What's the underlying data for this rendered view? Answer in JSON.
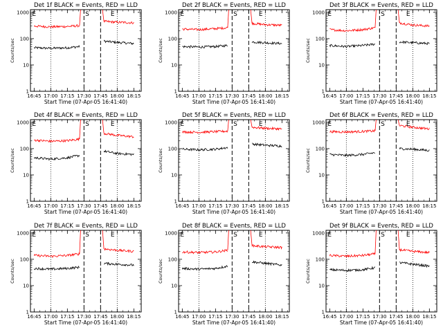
{
  "chart_data": [
    {
      "type": "line",
      "title": "Det 1f BLACK = Events, RED = LLD",
      "xlabel": "Start Time (07-Apr-05 16:41:40)",
      "ylabel": "Counts/sec",
      "yscale": "log",
      "ylim": [
        1,
        1000
      ],
      "y_ticks": [
        "1",
        "10",
        "100",
        "1000"
      ],
      "x_ticks": [
        "16:45",
        "17:00",
        "17:15",
        "17:30",
        "17:45",
        "18:00",
        "18:15"
      ],
      "series": [
        {
          "name": "BLACK = Events",
          "color": "#000000",
          "segments": [
            {
              "x": [
                "16:45",
                "17:00",
                "17:15",
                "17:26"
              ],
              "y": [
                45,
                43,
                45,
                50
              ]
            },
            {
              "x": [
                "17:48",
                "18:00",
                "18:15"
              ],
              "y": [
                80,
                72,
                65
              ]
            }
          ]
        },
        {
          "name": "RED = LLD",
          "color": "#ff0000",
          "segments": [
            {
              "x": [
                "16:45",
                "17:00",
                "17:15",
                "17:26"
              ],
              "y": [
                300,
                280,
                290,
                310
              ]
            },
            {
              "x": [
                "17:48",
                "18:00",
                "18:15"
              ],
              "y": [
                450,
                420,
                400
              ]
            }
          ]
        }
      ],
      "markers": [
        {
          "label": "E",
          "x": "16:45"
        },
        {
          "label": "S",
          "x": "17:33"
        },
        {
          "label": "E",
          "x": "17:56"
        }
      ],
      "dashed_lines": [
        "17:30",
        "17:45"
      ],
      "dotted_lines": [
        "17:00",
        "18:00"
      ]
    },
    {
      "type": "line",
      "title": "Det 2f BLACK = Events, RED = LLD",
      "xlabel": "Start Time (07-Apr-05 16:41:40)",
      "ylabel": "Counts/sec",
      "yscale": "log",
      "ylim": [
        1,
        1000
      ],
      "y_ticks": [
        "1",
        "10",
        "100",
        "1000"
      ],
      "x_ticks": [
        "16:45",
        "17:00",
        "17:15",
        "17:30",
        "17:45",
        "18:00",
        "18:15"
      ],
      "series": [
        {
          "name": "BLACK = Events",
          "color": "#000000",
          "segments": [
            {
              "x": [
                "16:45",
                "17:00",
                "17:15",
                "17:26"
              ],
              "y": [
                50,
                48,
                50,
                55
              ]
            },
            {
              "x": [
                "17:48",
                "18:00",
                "18:15"
              ],
              "y": [
                75,
                70,
                65
              ]
            }
          ]
        },
        {
          "name": "RED = LLD",
          "color": "#ff0000",
          "segments": [
            {
              "x": [
                "16:45",
                "17:00",
                "17:15",
                "17:26"
              ],
              "y": [
                230,
                220,
                240,
                260
              ]
            },
            {
              "x": [
                "17:48",
                "18:00",
                "18:15"
              ],
              "y": [
                380,
                340,
                320
              ]
            }
          ]
        }
      ],
      "markers": [
        {
          "label": "E",
          "x": "16:45"
        },
        {
          "label": "S",
          "x": "17:33"
        },
        {
          "label": "E",
          "x": "17:56"
        }
      ],
      "dashed_lines": [
        "17:30",
        "17:45"
      ],
      "dotted_lines": [
        "17:00",
        "18:00"
      ]
    },
    {
      "type": "line",
      "title": "Det 3f BLACK = Events, RED = LLD",
      "xlabel": "Start Time (07-Apr-05 16:41:40)",
      "ylabel": "Counts/sec",
      "yscale": "log",
      "ylim": [
        1,
        1000
      ],
      "y_ticks": [
        "1",
        "10",
        "100",
        "1000"
      ],
      "x_ticks": [
        "16:45",
        "17:00",
        "17:15",
        "17:30",
        "17:45",
        "18:00",
        "18:15"
      ],
      "series": [
        {
          "name": "BLACK = Events",
          "color": "#000000",
          "segments": [
            {
              "x": [
                "16:45",
                "17:00",
                "17:15",
                "17:26"
              ],
              "y": [
                55,
                50,
                55,
                62
              ]
            },
            {
              "x": [
                "17:48",
                "18:00",
                "18:15"
              ],
              "y": [
                75,
                70,
                65
              ]
            }
          ]
        },
        {
          "name": "RED = LLD",
          "color": "#ff0000",
          "segments": [
            {
              "x": [
                "16:45",
                "17:00",
                "17:15",
                "17:26"
              ],
              "y": [
                220,
                200,
                220,
                260
              ]
            },
            {
              "x": [
                "17:48",
                "18:00",
                "18:15"
              ],
              "y": [
                400,
                330,
                300
              ]
            }
          ]
        }
      ],
      "markers": [
        {
          "label": "E",
          "x": "16:45"
        },
        {
          "label": "S",
          "x": "17:33"
        },
        {
          "label": "E",
          "x": "17:56"
        }
      ],
      "dashed_lines": [
        "17:30",
        "17:45"
      ],
      "dotted_lines": [
        "17:00",
        "18:00"
      ]
    },
    {
      "type": "line",
      "title": "Det 4f BLACK = Events, RED = LLD",
      "xlabel": "Start Time (07-Apr-05 16:41:40)",
      "ylabel": "Counts/sec",
      "yscale": "log",
      "ylim": [
        1,
        1000
      ],
      "y_ticks": [
        "1",
        "10",
        "100",
        "1000"
      ],
      "x_ticks": [
        "16:45",
        "17:00",
        "17:15",
        "17:30",
        "17:45",
        "18:00",
        "18:15"
      ],
      "series": [
        {
          "name": "BLACK = Events",
          "color": "#000000",
          "segments": [
            {
              "x": [
                "16:45",
                "17:00",
                "17:15",
                "17:26"
              ],
              "y": [
                45,
                40,
                45,
                55
              ]
            },
            {
              "x": [
                "17:48",
                "18:00",
                "18:15"
              ],
              "y": [
                80,
                65,
                60
              ]
            }
          ]
        },
        {
          "name": "RED = LLD",
          "color": "#ff0000",
          "segments": [
            {
              "x": [
                "16:45",
                "17:00",
                "17:15",
                "17:26"
              ],
              "y": [
                210,
                190,
                200,
                230
              ]
            },
            {
              "x": [
                "17:48",
                "18:00",
                "18:15"
              ],
              "y": [
                380,
                320,
                280
              ]
            }
          ]
        }
      ],
      "markers": [
        {
          "label": "E",
          "x": "16:45"
        },
        {
          "label": "S",
          "x": "17:33"
        },
        {
          "label": "E",
          "x": "17:56"
        }
      ],
      "dashed_lines": [
        "17:30",
        "17:45"
      ],
      "dotted_lines": [
        "17:00",
        "18:00"
      ]
    },
    {
      "type": "line",
      "title": "Det 5f BLACK = Events, RED = LLD",
      "xlabel": "Start Time (07-Apr-05 16:41:40)",
      "ylabel": "Counts/sec",
      "yscale": "log",
      "ylim": [
        1,
        1000
      ],
      "y_ticks": [
        "1",
        "10",
        "100",
        "1000"
      ],
      "x_ticks": [
        "16:45",
        "17:00",
        "17:15",
        "17:30",
        "17:45",
        "18:00",
        "18:15"
      ],
      "series": [
        {
          "name": "BLACK = Events",
          "color": "#000000",
          "segments": [
            {
              "x": [
                "16:45",
                "17:00",
                "17:15",
                "17:26"
              ],
              "y": [
                95,
                90,
                95,
                110
              ]
            },
            {
              "x": [
                "17:48",
                "18:00",
                "18:15"
              ],
              "y": [
                150,
                135,
                125
              ]
            }
          ]
        },
        {
          "name": "RED = LLD",
          "color": "#ff0000",
          "segments": [
            {
              "x": [
                "16:45",
                "17:00",
                "17:15",
                "17:26"
              ],
              "y": [
                430,
                420,
                440,
                460
              ]
            },
            {
              "x": [
                "17:48",
                "18:00",
                "18:15"
              ],
              "y": [
                650,
                590,
                560
              ]
            }
          ]
        }
      ],
      "markers": [
        {
          "label": "E",
          "x": "16:45"
        },
        {
          "label": "S",
          "x": "17:33"
        },
        {
          "label": "E",
          "x": "17:56"
        }
      ],
      "dashed_lines": [
        "17:30",
        "17:45"
      ],
      "dotted_lines": [
        "17:00",
        "18:00"
      ]
    },
    {
      "type": "line",
      "title": "Det 6f BLACK = Events, RED = LLD",
      "xlabel": "Start Time (07-Apr-05 16:41:40)",
      "ylabel": "Counts/sec",
      "yscale": "log",
      "ylim": [
        1,
        1000
      ],
      "y_ticks": [
        "1",
        "10",
        "100",
        "1000"
      ],
      "x_ticks": [
        "16:45",
        "17:00",
        "17:15",
        "17:30",
        "17:45",
        "18:00",
        "18:15"
      ],
      "series": [
        {
          "name": "BLACK = Events",
          "color": "#000000",
          "segments": [
            {
              "x": [
                "16:45",
                "17:00",
                "17:15",
                "17:26"
              ],
              "y": [
                60,
                55,
                60,
                70
              ]
            },
            {
              "x": [
                "17:48",
                "18:00",
                "18:15"
              ],
              "y": [
                100,
                95,
                85
              ]
            }
          ]
        },
        {
          "name": "RED = LLD",
          "color": "#ff0000",
          "segments": [
            {
              "x": [
                "16:45",
                "17:00",
                "17:15",
                "17:26"
              ],
              "y": [
                440,
                430,
                450,
                470
              ]
            },
            {
              "x": [
                "17:48",
                "18:00",
                "18:15"
              ],
              "y": [
                750,
                650,
                560
              ]
            }
          ]
        }
      ],
      "markers": [
        {
          "label": "E",
          "x": "16:45"
        },
        {
          "label": "S",
          "x": "17:33"
        },
        {
          "label": "E",
          "x": "17:56"
        }
      ],
      "dashed_lines": [
        "17:30",
        "17:45"
      ],
      "dotted_lines": [
        "17:00",
        "18:00"
      ]
    },
    {
      "type": "line",
      "title": "Det 7f BLACK = Events, RED = LLD",
      "xlabel": "Start Time (07-Apr-05 16:41:40)",
      "ylabel": "Counts/sec",
      "yscale": "log",
      "ylim": [
        1,
        1000
      ],
      "y_ticks": [
        "1",
        "10",
        "100",
        "1000"
      ],
      "x_ticks": [
        "16:45",
        "17:00",
        "17:15",
        "17:30",
        "17:45",
        "18:00",
        "18:15"
      ],
      "series": [
        {
          "name": "BLACK = Events",
          "color": "#000000",
          "segments": [
            {
              "x": [
                "16:45",
                "17:00",
                "17:15",
                "17:26"
              ],
              "y": [
                45,
                42,
                45,
                50
              ]
            },
            {
              "x": [
                "17:48",
                "18:00",
                "18:15"
              ],
              "y": [
                70,
                65,
                60
              ]
            }
          ]
        },
        {
          "name": "RED = LLD",
          "color": "#ff0000",
          "segments": [
            {
              "x": [
                "16:45",
                "17:00",
                "17:15",
                "17:26"
              ],
              "y": [
                140,
                130,
                140,
                160
              ]
            },
            {
              "x": [
                "17:48",
                "18:00",
                "18:15"
              ],
              "y": [
                250,
                220,
                200
              ]
            }
          ]
        }
      ],
      "markers": [
        {
          "label": "E",
          "x": "16:45"
        },
        {
          "label": "S",
          "x": "17:33"
        },
        {
          "label": "E",
          "x": "17:56"
        }
      ],
      "dashed_lines": [
        "17:30",
        "17:45"
      ],
      "dotted_lines": [
        "17:00",
        "18:00"
      ]
    },
    {
      "type": "line",
      "title": "Det 8f BLACK = Events, RED = LLD",
      "xlabel": "Start Time (07-Apr-05 16:41:40)",
      "ylabel": "Counts/sec",
      "yscale": "log",
      "ylim": [
        1,
        1000
      ],
      "y_ticks": [
        "1",
        "10",
        "100",
        "1000"
      ],
      "x_ticks": [
        "16:45",
        "17:00",
        "17:15",
        "17:30",
        "17:45",
        "18:00",
        "18:15"
      ],
      "series": [
        {
          "name": "BLACK = Events",
          "color": "#000000",
          "segments": [
            {
              "x": [
                "16:45",
                "17:00",
                "17:15",
                "17:26"
              ],
              "y": [
                45,
                42,
                45,
                55
              ]
            },
            {
              "x": [
                "17:48",
                "18:00",
                "18:15"
              ],
              "y": [
                80,
                70,
                60
              ]
            }
          ]
        },
        {
          "name": "RED = LLD",
          "color": "#ff0000",
          "segments": [
            {
              "x": [
                "16:45",
                "17:00",
                "17:15",
                "17:26"
              ],
              "y": [
                190,
                180,
                190,
                220
              ]
            },
            {
              "x": [
                "17:48",
                "18:00",
                "18:15"
              ],
              "y": [
                330,
                300,
                280
              ]
            }
          ]
        }
      ],
      "markers": [
        {
          "label": "E",
          "x": "16:45"
        },
        {
          "label": "S",
          "x": "17:33"
        },
        {
          "label": "E",
          "x": "17:56"
        }
      ],
      "dashed_lines": [
        "17:30",
        "17:45"
      ],
      "dotted_lines": [
        "17:00",
        "18:00"
      ]
    },
    {
      "type": "line",
      "title": "Det 9f BLACK = Events, RED = LLD",
      "xlabel": "Start Time (07-Apr-05 16:41:40)",
      "ylabel": "Counts/sec",
      "yscale": "log",
      "ylim": [
        1,
        1000
      ],
      "y_ticks": [
        "1",
        "10",
        "100",
        "1000"
      ],
      "x_ticks": [
        "16:45",
        "17:00",
        "17:15",
        "17:30",
        "17:45",
        "18:00",
        "18:15"
      ],
      "series": [
        {
          "name": "BLACK = Events",
          "color": "#000000",
          "segments": [
            {
              "x": [
                "16:45",
                "17:00",
                "17:15",
                "17:26"
              ],
              "y": [
                40,
                38,
                40,
                48
              ]
            },
            {
              "x": [
                "17:48",
                "18:00",
                "18:15"
              ],
              "y": [
                75,
                65,
                55
              ]
            }
          ]
        },
        {
          "name": "RED = LLD",
          "color": "#ff0000",
          "segments": [
            {
              "x": [
                "16:45",
                "17:00",
                "17:15",
                "17:26"
              ],
              "y": [
                140,
                130,
                140,
                160
              ]
            },
            {
              "x": [
                "17:48",
                "18:00",
                "18:15"
              ],
              "y": [
                230,
                200,
                180
              ]
            }
          ]
        }
      ],
      "markers": [
        {
          "label": "E",
          "x": "16:45"
        },
        {
          "label": "S",
          "x": "17:33"
        },
        {
          "label": "E",
          "x": "17:56"
        }
      ],
      "dashed_lines": [
        "17:30",
        "17:45"
      ],
      "dotted_lines": [
        "17:00",
        "18:00"
      ]
    }
  ]
}
